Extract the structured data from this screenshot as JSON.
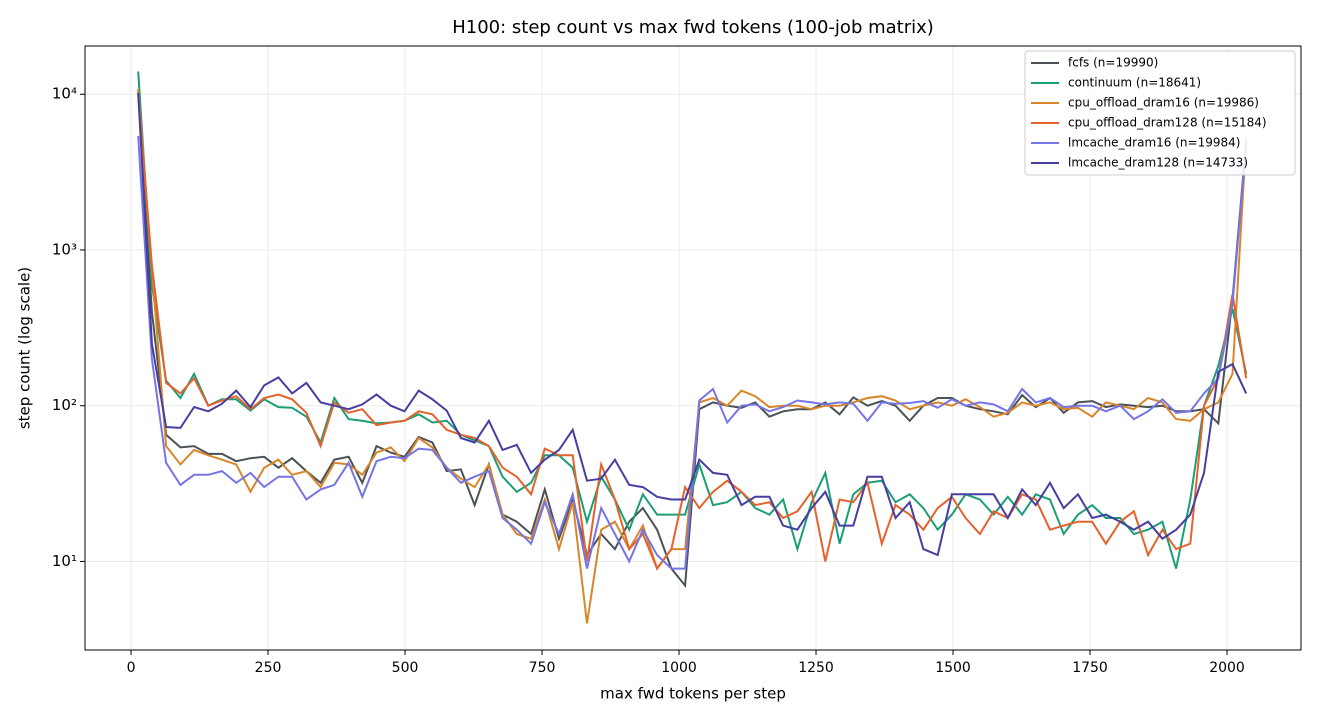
{
  "chart_data": {
    "type": "line",
    "title": "H100: step count vs max fwd tokens (100-job matrix)",
    "x_label": "max fwd tokens per step",
    "y_label": "step count (log scale)",
    "log_y": true,
    "grid": true,
    "legend": "upper right",
    "xlim": [
      -84,
      2135
    ],
    "ylim": [
      2.7,
      20400
    ],
    "xticks": [
      0,
      250,
      500,
      750,
      1000,
      1250,
      1500,
      1750,
      2000
    ],
    "yticks": [
      {
        "value": 10,
        "label": "10¹"
      },
      {
        "value": 100,
        "label": "10²"
      },
      {
        "value": 1000,
        "label": "10³"
      },
      {
        "value": 10000,
        "label": "10⁴"
      }
    ],
    "x": [
      13,
      38,
      64,
      90,
      115,
      141,
      166,
      192,
      218,
      243,
      269,
      294,
      320,
      346,
      371,
      397,
      422,
      448,
      474,
      499,
      525,
      550,
      576,
      602,
      627,
      653,
      678,
      704,
      730,
      755,
      781,
      806,
      832,
      858,
      883,
      909,
      934,
      960,
      986,
      1011,
      1037,
      1062,
      1088,
      1114,
      1139,
      1165,
      1190,
      1216,
      1242,
      1267,
      1293,
      1318,
      1344,
      1370,
      1395,
      1421,
      1446,
      1472,
      1498,
      1523,
      1549,
      1574,
      1600,
      1626,
      1651,
      1677,
      1702,
      1728,
      1754,
      1779,
      1805,
      1830,
      1856,
      1882,
      1907,
      1933,
      1958,
      1984,
      2010,
      2035
    ],
    "series": [
      {
        "name": "fcfs (n=19990)",
        "color": "#4a5257",
        "values": [
          10500,
          400,
          65,
          54,
          55,
          49,
          49,
          44,
          46,
          47,
          40,
          46,
          38,
          32,
          45,
          47,
          32,
          55,
          50,
          47,
          63,
          58,
          38,
          39,
          23,
          42,
          20,
          18,
          15,
          29,
          14,
          25,
          11,
          15,
          12,
          18,
          22,
          16,
          9,
          7,
          95,
          105,
          100,
          97,
          105,
          85,
          92,
          95,
          95,
          105,
          88,
          113,
          100,
          107,
          100,
          80,
          100,
          112,
          112,
          100,
          95,
          92,
          88,
          117,
          98,
          112,
          90,
          105,
          107,
          98,
          102,
          100,
          98,
          100,
          92,
          92,
          95,
          77,
          480,
          5000
        ]
      },
      {
        "name": "continuum (n=18641)",
        "color": "#1b9e77",
        "values": [
          14000,
          600,
          145,
          112,
          160,
          100,
          110,
          110,
          93,
          110,
          98,
          97,
          85,
          58,
          112,
          82,
          80,
          77,
          78,
          80,
          88,
          78,
          80,
          65,
          60,
          55,
          35,
          28,
          32,
          48,
          48,
          40,
          18,
          35,
          25,
          16,
          27,
          20,
          20,
          20,
          42,
          23,
          24,
          28,
          22,
          20,
          25,
          12,
          24,
          37,
          13,
          27,
          32,
          33,
          24,
          27,
          22,
          16,
          20,
          27,
          25,
          20,
          26,
          20,
          27,
          25,
          15,
          20,
          23,
          19,
          19,
          15,
          16,
          18,
          9,
          25,
          100,
          180,
          420,
          160
        ]
      },
      {
        "name": "cpu_offload_dram16 (n=19986)",
        "color": "#d9862a",
        "values": [
          10800,
          750,
          55,
          42,
          52,
          48,
          45,
          42,
          28,
          40,
          45,
          36,
          38,
          30,
          43,
          42,
          36,
          50,
          54,
          44,
          62,
          54,
          40,
          34,
          30,
          42,
          20,
          15,
          14,
          25,
          12,
          24,
          4,
          16,
          18,
          12,
          17,
          9,
          12,
          12,
          105,
          112,
          100,
          125,
          115,
          98,
          100,
          100,
          95,
          100,
          100,
          105,
          112,
          115,
          108,
          95,
          100,
          105,
          100,
          110,
          98,
          85,
          90,
          105,
          100,
          105,
          95,
          97,
          85,
          105,
          100,
          95,
          112,
          105,
          82,
          80,
          95,
          105,
          160,
          5200
        ]
      },
      {
        "name": "cpu_offload_dram128 (n=15184)",
        "color": "#e5622c",
        "values": [
          10000,
          800,
          140,
          120,
          150,
          100,
          108,
          115,
          95,
          112,
          118,
          110,
          90,
          55,
          105,
          90,
          95,
          75,
          78,
          80,
          92,
          88,
          70,
          65,
          62,
          55,
          40,
          35,
          27,
          53,
          48,
          48,
          10,
          42,
          25,
          12,
          15,
          9,
          12,
          30,
          22,
          28,
          33,
          28,
          23,
          24,
          19,
          21,
          28,
          10,
          25,
          24,
          32,
          13,
          23,
          20,
          16,
          22,
          26,
          19,
          15,
          21,
          19,
          27,
          25,
          16,
          17,
          18,
          18,
          13,
          18,
          21,
          11,
          16,
          12,
          13,
          100,
          150,
          520,
          150
        ]
      },
      {
        "name": "lmcache_dram16 (n=19984)",
        "color": "#7575e6",
        "values": [
          5400,
          200,
          43,
          31,
          36,
          36,
          38,
          32,
          37,
          30,
          35,
          35,
          25,
          29,
          31,
          43,
          26,
          44,
          47,
          46,
          53,
          52,
          40,
          32,
          35,
          38,
          19,
          16,
          13,
          24,
          15,
          27,
          9,
          22,
          15,
          10,
          16,
          11,
          9,
          9,
          108,
          128,
          78,
          100,
          102,
          92,
          98,
          108,
          105,
          102,
          105,
          103,
          80,
          105,
          103,
          104,
          107,
          97,
          110,
          100,
          105,
          102,
          92,
          128,
          105,
          112,
          98,
          100,
          100,
          92,
          100,
          82,
          92,
          110,
          90,
          92,
          120,
          150,
          450,
          4800
        ]
      },
      {
        "name": "lmcache_dram128 (n=14733)",
        "color": "#463ea0",
        "values": [
          10200,
          250,
          73,
          72,
          98,
          92,
          103,
          125,
          98,
          135,
          152,
          120,
          140,
          105,
          100,
          95,
          102,
          118,
          100,
          92,
          125,
          110,
          93,
          62,
          58,
          80,
          52,
          56,
          37,
          45,
          52,
          70,
          33,
          34,
          45,
          31,
          30,
          26,
          25,
          25,
          45,
          37,
          36,
          23,
          26,
          26,
          17,
          16,
          22,
          28,
          17,
          17,
          35,
          35,
          19,
          24,
          12,
          11,
          27,
          27,
          27,
          27,
          19,
          29,
          23,
          32,
          22,
          27,
          19,
          20,
          18,
          16,
          18,
          14,
          16,
          20,
          37,
          165,
          185,
          120
        ]
      }
    ]
  }
}
